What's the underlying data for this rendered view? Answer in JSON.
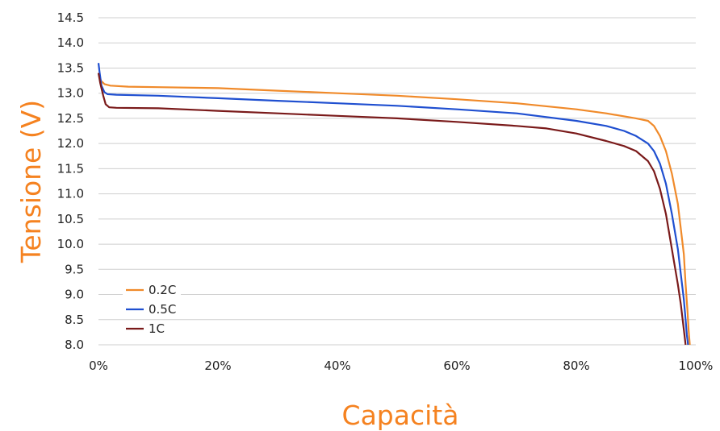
{
  "chart_data": {
    "type": "line",
    "xlabel": "Capacità",
    "ylabel": "Tensione (V)",
    "xlim": [
      0,
      100
    ],
    "ylim": [
      8.0,
      14.5
    ],
    "x_ticks": [
      0,
      20,
      40,
      60,
      80,
      100
    ],
    "x_tick_labels": [
      "0%",
      "20%",
      "40%",
      "60%",
      "80%",
      "100%"
    ],
    "y_ticks": [
      8.0,
      8.5,
      9.0,
      9.5,
      10.0,
      10.5,
      11.0,
      11.5,
      12.0,
      12.5,
      13.0,
      13.5,
      14.0,
      14.5
    ],
    "y_tick_labels": [
      "8.0",
      "8.5",
      "9.0",
      "9.5",
      "10.0",
      "10.5",
      "11.0",
      "11.5",
      "12.0",
      "12.5",
      "13.0",
      "13.5",
      "14.0",
      "14.5"
    ],
    "grid": true,
    "legend_position": "bottom-left",
    "axis_title_color": "#f58220",
    "series": [
      {
        "name": "0.2C",
        "color": "#f08a2a",
        "x": [
          0,
          0.4,
          1,
          2,
          5,
          10,
          20,
          30,
          40,
          50,
          60,
          70,
          80,
          85,
          90,
          92,
          93,
          94,
          95,
          96,
          97,
          97.5,
          98,
          98.3,
          98.6,
          98.8,
          99
        ],
        "y": [
          13.4,
          13.25,
          13.18,
          13.15,
          13.13,
          13.12,
          13.1,
          13.05,
          13.0,
          12.95,
          12.88,
          12.8,
          12.68,
          12.6,
          12.5,
          12.45,
          12.35,
          12.15,
          11.85,
          11.4,
          10.8,
          10.3,
          9.8,
          9.2,
          8.7,
          8.3,
          8.0
        ]
      },
      {
        "name": "0.5C",
        "color": "#1f4fd0",
        "x": [
          0,
          0.2,
          0.5,
          1,
          1.5,
          3,
          10,
          20,
          30,
          40,
          50,
          60,
          70,
          80,
          85,
          88,
          90,
          92,
          93,
          94,
          95,
          96,
          97,
          97.5,
          98,
          98.3,
          98.5,
          98.7
        ],
        "y": [
          13.6,
          13.4,
          13.15,
          13.02,
          12.98,
          12.97,
          12.95,
          12.9,
          12.85,
          12.8,
          12.75,
          12.68,
          12.6,
          12.45,
          12.35,
          12.25,
          12.15,
          12.0,
          11.85,
          11.6,
          11.2,
          10.6,
          9.9,
          9.4,
          8.9,
          8.5,
          8.2,
          8.0
        ]
      },
      {
        "name": "1C",
        "color": "#7a1a1a",
        "x": [
          0,
          0.3,
          0.8,
          1.2,
          1.8,
          3,
          10,
          20,
          30,
          40,
          50,
          60,
          70,
          75,
          80,
          85,
          88,
          90,
          92,
          93,
          94,
          95,
          96,
          97,
          97.5,
          98,
          98.3
        ],
        "y": [
          13.4,
          13.2,
          12.95,
          12.78,
          12.72,
          12.71,
          12.7,
          12.65,
          12.6,
          12.55,
          12.5,
          12.43,
          12.35,
          12.3,
          12.2,
          12.05,
          11.95,
          11.85,
          11.65,
          11.45,
          11.1,
          10.6,
          9.9,
          9.2,
          8.8,
          8.3,
          8.0
        ]
      }
    ]
  }
}
